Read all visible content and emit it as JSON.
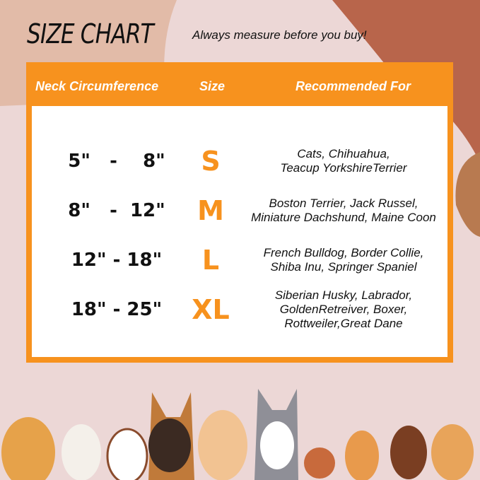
{
  "header": {
    "title": "SIZE CHART",
    "subtitle": "Always measure before you buy!"
  },
  "table": {
    "columns": [
      "Neck Circumference",
      "Size",
      "Recommended For"
    ],
    "rows": [
      {
        "neck": "5\"   -    8\"",
        "size": "S",
        "recommended": [
          "Cats, Chihuahua,",
          "Teacup YorkshireTerrier"
        ]
      },
      {
        "neck": "8\"   -  12\"",
        "size": "M",
        "recommended": [
          "Boston Terrier, Jack Russel,",
          "Miniature Dachshund, Maine Coon"
        ]
      },
      {
        "neck": "12\" - 18\"",
        "size": "L",
        "recommended": [
          "French Bulldog, Border Collie,",
          "Shiba Inu, Springer Spaniel"
        ]
      },
      {
        "neck": "18\" - 25\"",
        "size": "XL",
        "recommended": [
          "Siberian Husky, Labrador,",
          "GoldenRetreiver, Boxer,",
          "Rottweiler,Great Dane"
        ]
      }
    ]
  },
  "colors": {
    "accent": "#f7921e",
    "background": "#ecd7d6",
    "rust": "#b8644a"
  }
}
